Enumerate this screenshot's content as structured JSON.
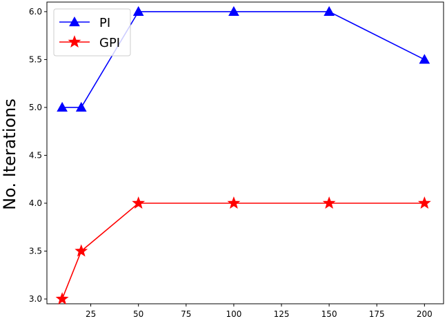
{
  "chart_data": {
    "type": "line",
    "title": "",
    "xlabel": "",
    "ylabel": "No. Iterations",
    "x": [
      10,
      20,
      50,
      100,
      150,
      200
    ],
    "xlim": [
      2,
      210
    ],
    "ylim": [
      2.95,
      6.1
    ],
    "xticks": [
      25,
      50,
      75,
      100,
      125,
      150,
      175,
      200
    ],
    "yticks": [
      3.0,
      3.5,
      4.0,
      4.5,
      5.0,
      5.5,
      6.0
    ],
    "xtick_labels": [
      "25",
      "50",
      "75",
      "100",
      "125",
      "150",
      "175",
      "200"
    ],
    "ytick_labels": [
      "3.0",
      "3.5",
      "4.0",
      "4.5",
      "5.0",
      "5.5",
      "6.0"
    ],
    "grid": false,
    "legend_position": "top-left",
    "series": [
      {
        "name": "PI",
        "color": "#0000ff",
        "marker": "triangle",
        "values": [
          5,
          5,
          6,
          6,
          6,
          5.5
        ]
      },
      {
        "name": "GPI",
        "color": "#ff0000",
        "marker": "star",
        "values": [
          3,
          3.5,
          4,
          4,
          4,
          4
        ]
      }
    ]
  }
}
